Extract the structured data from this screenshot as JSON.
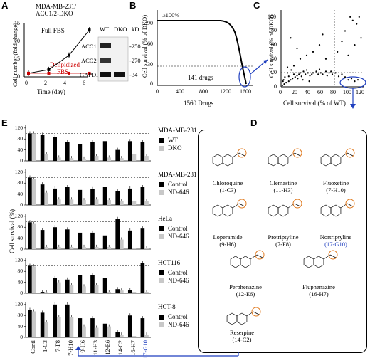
{
  "panels": {
    "A": "A",
    "B": "B",
    "C": "C",
    "D": "D",
    "E": "E"
  },
  "panel_a": {
    "title_line1": "MDA-MB-231/",
    "title_line2": "ACC1/2-DKO",
    "ylabel": "Cell number (fold change)",
    "xlabel": "Time (day)",
    "yticks": [
      "0",
      "5",
      "10",
      "15"
    ],
    "xticks": [
      "0",
      "2",
      "4",
      "6"
    ],
    "full_label": "Full FBS",
    "delip_line1": "Delipidized",
    "delip_line2": "FBS",
    "blot_cols": [
      "WT",
      "DKO"
    ],
    "blot_rows": [
      "ACC1",
      "ACC2",
      "GAPDH"
    ],
    "kd_header": "kD",
    "kd_values": [
      "-250",
      "-270",
      "-34"
    ],
    "colors": {
      "full": "#000000",
      "delip": "#cc0000"
    }
  },
  "panel_b": {
    "ylabel": "Cell survival (% of DKO)",
    "xlabel": "1560 Drugs",
    "yticks": [
      "0",
      "30",
      "60",
      "90"
    ],
    "xticks": [
      "0",
      "400",
      "800",
      "1200",
      "1600"
    ],
    "annot_top": "≥100%",
    "annot_drugs": "141 drugs"
  },
  "panel_c": {
    "ylabel": "Cell survival (% of DKO)",
    "xlabel": "Cell survival (% of WT)",
    "yticks": [
      "0",
      "20",
      "40",
      "60",
      "80",
      "100"
    ],
    "xticks": [
      "0",
      "20",
      "40",
      "60",
      "80",
      "100",
      "120"
    ]
  },
  "panel_d": {
    "drugs": [
      {
        "name": "Chloroquine",
        "id": "(1-C3)"
      },
      {
        "name": "Clemastine",
        "id": "(11-H3)"
      },
      {
        "name": "Fluoxetine",
        "id": "(7-H10)"
      },
      {
        "name": "Loperamide",
        "id": "(9-H6)"
      },
      {
        "name": "Protriptyline",
        "id": "(7-F8)"
      },
      {
        "name": "Nortriptyline",
        "id": "(17-G10)"
      },
      {
        "name": "Perphenazine",
        "id": "(12-E6)"
      },
      {
        "name": "Fluphenazine",
        "id": "(16-H7)"
      },
      {
        "name": "Reserpine",
        "id": "(14-C2)"
      }
    ],
    "highlight_color": "#1f3fbf"
  },
  "panel_e": {
    "ylabel": "Cell survival (%)",
    "yticks": [
      "0",
      "40",
      "80",
      "120"
    ],
    "categories": [
      "Contl",
      "1-C3",
      "7-F8",
      "7-H10",
      "9-H6",
      "11-H3",
      "12-E6",
      "14-C2",
      "16-H7",
      "17-G10"
    ],
    "highlight_category": "17-G10",
    "rows": [
      {
        "cell": "MDA-MB-231",
        "legend": [
          "WT",
          "DKO"
        ],
        "a": [
          100,
          95,
          88,
          70,
          60,
          70,
          72,
          40,
          72,
          70
        ],
        "b": [
          100,
          25,
          12,
          10,
          8,
          18,
          12,
          10,
          25,
          18
        ]
      },
      {
        "cell": "MDA-MB-231",
        "legend": [
          "Control",
          "ND-646"
        ],
        "a": [
          100,
          75,
          60,
          65,
          55,
          58,
          65,
          50,
          60,
          65
        ],
        "b": [
          95,
          45,
          20,
          20,
          18,
          20,
          18,
          15,
          15,
          15
        ]
      },
      {
        "cell": "HeLa",
        "legend": [
          "Control",
          "ND-646"
        ],
        "a": [
          98,
          70,
          80,
          72,
          60,
          60,
          50,
          110,
          68,
          75
        ],
        "b": [
          92,
          8,
          8,
          8,
          8,
          8,
          8,
          35,
          5,
          5
        ]
      },
      {
        "cell": "HCT116",
        "legend": [
          "Control",
          "ND-646"
        ],
        "a": [
          100,
          5,
          55,
          50,
          65,
          65,
          55,
          15,
          12,
          110
        ],
        "b": [
          98,
          4,
          40,
          30,
          25,
          30,
          5,
          10,
          5,
          5
        ]
      },
      {
        "cell": "HCT-8",
        "legend": [
          "Control",
          "ND-646"
        ],
        "a": [
          100,
          90,
          120,
          120,
          70,
          70,
          50,
          20,
          80,
          70
        ],
        "b": [
          95,
          55,
          75,
          75,
          40,
          35,
          40,
          10,
          5,
          10
        ]
      }
    ]
  },
  "chart_data": [
    {
      "type": "line",
      "title": "MDA-MB-231/ ACC1/2-DKO",
      "xlabel": "Time (day)",
      "ylabel": "Cell number (fold change)",
      "x": [
        0,
        2,
        4,
        6
      ],
      "series": [
        {
          "name": "Full FBS",
          "values": [
            1,
            2,
            6,
            13
          ]
        },
        {
          "name": "Delipidized FBS",
          "values": [
            1,
            1,
            1,
            1
          ]
        }
      ],
      "ylim": [
        0,
        15
      ]
    },
    {
      "type": "line",
      "xlabel": "1560 Drugs",
      "ylabel": "Cell survival (% of DKO)",
      "ylim": [
        0,
        100
      ],
      "xlim": [
        0,
        1700
      ]
    },
    {
      "type": "scatter",
      "xlabel": "Cell survival (% of WT)",
      "ylabel": "Cell survival (% of DKO)",
      "xlim": [
        0,
        130
      ],
      "ylim": [
        0,
        110
      ]
    },
    {
      "type": "bar",
      "ylabel": "Cell survival (%)",
      "categories": [
        "Contl",
        "1-C3",
        "7-F8",
        "7-H10",
        "9-H6",
        "11-H3",
        "12-E6",
        "14-C2",
        "16-H7",
        "17-G10"
      ],
      "ylim": [
        0,
        130
      ]
    }
  ]
}
